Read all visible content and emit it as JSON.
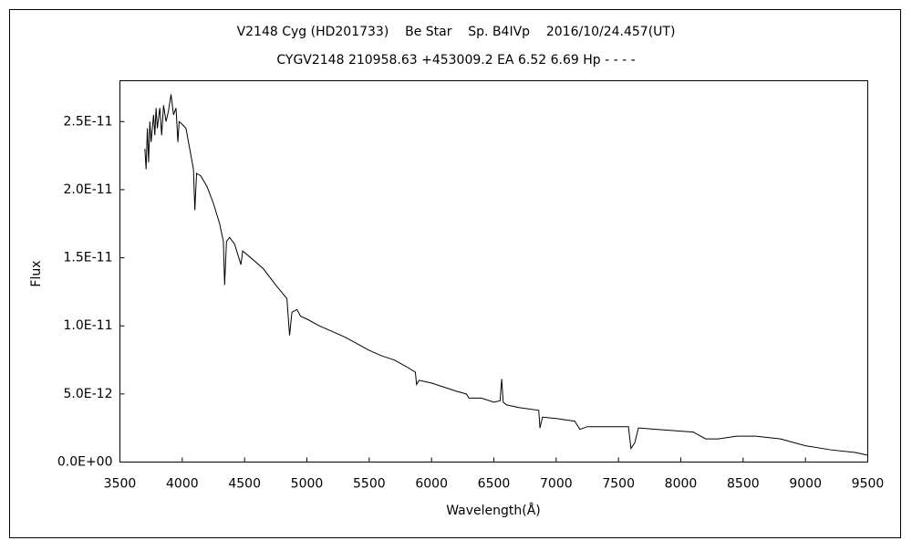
{
  "chart_data": {
    "type": "line",
    "title": "V2148 Cyg (HD201733)    Be Star    Sp. B4IVp    2016/10/24.457(UT)",
    "subtitle": "CYGV2148 210958.63 +453009.2 EA 6.52 6.69 Hp - - - -",
    "x_label": "Wavelength(Å)",
    "y_label": "Flux",
    "color": "#000000",
    "x": [
      3700,
      3710,
      3720,
      3730,
      3740,
      3750,
      3770,
      3780,
      3790,
      3800,
      3820,
      3835,
      3850,
      3870,
      3890,
      3910,
      3930,
      3950,
      3965,
      3975,
      4000,
      4030,
      4060,
      4090,
      4101,
      4115,
      4150,
      4200,
      4250,
      4300,
      4330,
      4340,
      4355,
      4380,
      4420,
      4471,
      4485,
      4550,
      4650,
      4750,
      4840,
      4861,
      4880,
      4920,
      4950,
      5000,
      5100,
      5200,
      5300,
      5400,
      5500,
      5600,
      5700,
      5800,
      5870,
      5880,
      5900,
      6000,
      6100,
      6200,
      6280,
      6300,
      6400,
      6500,
      6550,
      6563,
      6575,
      6600,
      6700,
      6860,
      6870,
      6890,
      7000,
      7150,
      7190,
      7250,
      7400,
      7580,
      7600,
      7630,
      7660,
      7800,
      8100,
      8200,
      8300,
      8450,
      8600,
      8800,
      9000,
      9200,
      9400,
      9500
    ],
    "values": [
      2.3e-11,
      2.15e-11,
      2.45e-11,
      2.2e-11,
      2.5e-11,
      2.35e-11,
      2.55e-11,
      2.4e-11,
      2.6e-11,
      2.45e-11,
      2.6e-11,
      2.4e-11,
      2.62e-11,
      2.5e-11,
      2.58e-11,
      2.7e-11,
      2.55e-11,
      2.6e-11,
      2.35e-11,
      2.5e-11,
      2.48e-11,
      2.45e-11,
      2.3e-11,
      2.15e-11,
      1.85e-11,
      2.12e-11,
      2.1e-11,
      2.02e-11,
      1.9e-11,
      1.75e-11,
      1.62e-11,
      1.3e-11,
      1.62e-11,
      1.65e-11,
      1.6e-11,
      1.45e-11,
      1.55e-11,
      1.5e-11,
      1.42e-11,
      1.3e-11,
      1.2e-11,
      9.3e-12,
      1.1e-11,
      1.12e-11,
      1.07e-11,
      1.05e-11,
      1e-11,
      9.6e-12,
      9.2e-12,
      8.7e-12,
      8.2e-12,
      7.8e-12,
      7.5e-12,
      7e-12,
      6.6e-12,
      5.7e-12,
      6e-12,
      5.8e-12,
      5.5e-12,
      5.2e-12,
      5e-12,
      4.7e-12,
      4.7e-12,
      4.4e-12,
      4.5e-12,
      6.1e-12,
      4.4e-12,
      4.2e-12,
      4e-12,
      3.8e-12,
      2.5e-12,
      3.3e-12,
      3.2e-12,
      3e-12,
      2.4e-12,
      2.6e-12,
      2.6e-12,
      2.6e-12,
      1e-12,
      1.4e-12,
      2.5e-12,
      2.4e-12,
      2.2e-12,
      1.7e-12,
      1.7e-12,
      1.9e-12,
      1.9e-12,
      1.7e-12,
      1.2e-12,
      9e-13,
      7e-13,
      5e-13
    ],
    "xlim": [
      3500,
      9500
    ],
    "xticks": [
      3500,
      4000,
      4500,
      5000,
      5500,
      6000,
      6500,
      7000,
      7500,
      8000,
      8500,
      9000,
      9500
    ],
    "ylim": [
      0,
      2.8e-11
    ],
    "yticks": [
      {
        "value": 0,
        "label": "0.0E+00"
      },
      {
        "value": 5e-12,
        "label": "5.0E-12"
      },
      {
        "value": 1e-11,
        "label": "1.0E-11"
      },
      {
        "value": 1.5e-11,
        "label": "1.5E-11"
      },
      {
        "value": 2e-11,
        "label": "2.0E-11"
      },
      {
        "value": 2.5e-11,
        "label": "2.5E-11"
      }
    ],
    "grid": false
  }
}
